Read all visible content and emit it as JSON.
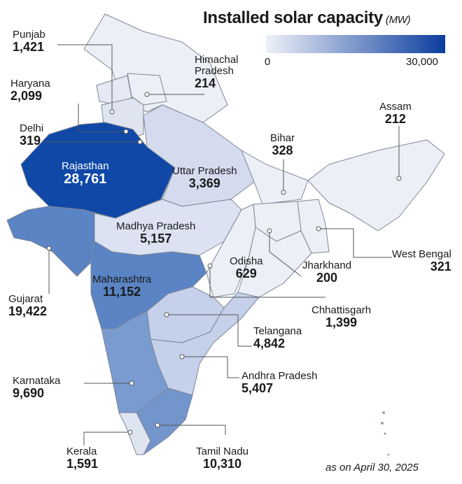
{
  "title": "Installed solar capacity",
  "unit": "(MW)",
  "legend": {
    "min_label": "0",
    "max_label": "30,000",
    "color_low": "#eef1f8",
    "color_high": "#0b3d9e"
  },
  "states": {
    "punjab": {
      "name": "Punjab",
      "value": "1,421"
    },
    "haryana": {
      "name": "Haryana",
      "value": "2,099"
    },
    "delhi": {
      "name": "Delhi",
      "value": "319"
    },
    "himachal": {
      "name": "Himachal Pradesh",
      "value": "214"
    },
    "rajasthan": {
      "name": "Rajasthan",
      "value": "28,761"
    },
    "uttar_pradesh": {
      "name": "Uttar Pradesh",
      "value": "3,369"
    },
    "bihar": {
      "name": "Bihar",
      "value": "328"
    },
    "assam": {
      "name": "Assam",
      "value": "212"
    },
    "madhya_pradesh": {
      "name": "Madhya Pradesh",
      "value": "5,157"
    },
    "gujarat": {
      "name": "Gujarat",
      "value": "19,422"
    },
    "maharashtra": {
      "name": "Maharashtra",
      "value": "11,152"
    },
    "odisha": {
      "name": "Odisha",
      "value": "629"
    },
    "jharkhand": {
      "name": "Jharkhand",
      "value": "200"
    },
    "west_bengal": {
      "name": "West Bengal",
      "value": "321"
    },
    "chhattisgarh": {
      "name": "Chhattisgarh",
      "value": "1,399"
    },
    "telangana": {
      "name": "Telangana",
      "value": "4,842"
    },
    "andhra_pradesh": {
      "name": "Andhra Pradesh",
      "value": "5,407"
    },
    "karnataka": {
      "name": "Karnataka",
      "value": "9,690"
    },
    "kerala": {
      "name": "Kerala",
      "value": "1,591"
    },
    "tamil_nadu": {
      "name": "Tamil Nadu",
      "value": "10,310"
    }
  },
  "footnote": "as on April 30, 2025"
}
